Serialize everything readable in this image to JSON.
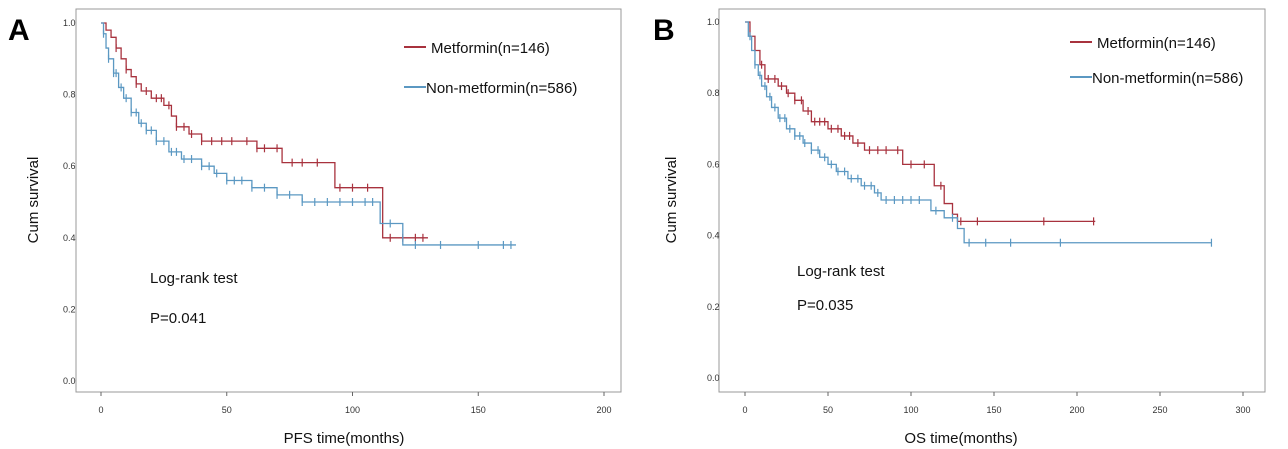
{
  "chart_data": [
    {
      "type": "line",
      "panel_label": "A",
      "xlabel": "PFS time(months)",
      "ylabel": "Cum survival",
      "xlim": [
        0,
        200
      ],
      "ylim": [
        0,
        1
      ],
      "xticks": [
        "0",
        "50",
        "100",
        "150",
        "200"
      ],
      "yticks": [
        "0.0",
        "0.2",
        "0.4",
        "0.6",
        "0.8",
        "1.0"
      ],
      "legend_position": "top-right",
      "annotations": [
        "Log-rank test",
        "P=0.041"
      ],
      "series": [
        {
          "name": "Metformin(n=146)",
          "color": "#a8323e",
          "steps": [
            [
              0,
              1.0
            ],
            [
              2,
              0.98
            ],
            [
              4,
              0.96
            ],
            [
              6,
              0.93
            ],
            [
              8,
              0.9
            ],
            [
              10,
              0.87
            ],
            [
              12,
              0.85
            ],
            [
              14,
              0.83
            ],
            [
              16,
              0.81
            ],
            [
              20,
              0.79
            ],
            [
              25,
              0.77
            ],
            [
              28,
              0.74
            ],
            [
              30,
              0.71
            ],
            [
              35,
              0.69
            ],
            [
              40,
              0.67
            ],
            [
              60,
              0.67
            ],
            [
              62,
              0.65
            ],
            [
              70,
              0.65
            ],
            [
              72,
              0.61
            ],
            [
              92,
              0.61
            ],
            [
              93,
              0.54
            ],
            [
              110,
              0.54
            ],
            [
              112,
              0.4
            ],
            [
              130,
              0.4
            ]
          ],
          "censor_x": [
            6,
            10,
            14,
            18,
            22,
            24,
            27,
            30,
            33,
            36,
            40,
            44,
            48,
            52,
            58,
            62,
            65,
            70,
            76,
            80,
            86,
            95,
            100,
            106,
            115,
            120,
            125,
            128
          ]
        },
        {
          "name": "Non-metformin(n=586)",
          "color": "#5b98c2",
          "steps": [
            [
              0,
              1.0
            ],
            [
              1,
              0.97
            ],
            [
              2,
              0.93
            ],
            [
              3,
              0.9
            ],
            [
              5,
              0.86
            ],
            [
              7,
              0.82
            ],
            [
              9,
              0.79
            ],
            [
              12,
              0.75
            ],
            [
              15,
              0.72
            ],
            [
              18,
              0.7
            ],
            [
              22,
              0.67
            ],
            [
              27,
              0.64
            ],
            [
              32,
              0.62
            ],
            [
              40,
              0.6
            ],
            [
              45,
              0.58
            ],
            [
              50,
              0.56
            ],
            [
              60,
              0.54
            ],
            [
              70,
              0.52
            ],
            [
              80,
              0.5
            ],
            [
              110,
              0.5
            ],
            [
              111,
              0.44
            ],
            [
              120,
              0.38
            ],
            [
              165,
              0.38
            ]
          ],
          "censor_x": [
            1,
            3,
            5,
            6,
            8,
            10,
            12,
            14,
            16,
            18,
            20,
            22,
            25,
            28,
            30,
            33,
            36,
            40,
            43,
            46,
            50,
            53,
            56,
            60,
            65,
            70,
            75,
            80,
            85,
            90,
            95,
            100,
            105,
            108,
            115,
            125,
            135,
            150,
            160,
            163
          ]
        }
      ]
    },
    {
      "type": "line",
      "panel_label": "B",
      "xlabel": "OS time(months)",
      "ylabel": "Cum survival",
      "xlim": [
        0,
        300
      ],
      "ylim": [
        0,
        1
      ],
      "xticks": [
        "0",
        "50",
        "100",
        "150",
        "200",
        "250",
        "300"
      ],
      "yticks": [
        "0.0",
        "0.2",
        "0.4",
        "0.6",
        "0.8",
        "1.0"
      ],
      "legend_position": "top-right",
      "annotations": [
        "Log-rank test",
        "P=0.035"
      ],
      "series": [
        {
          "name": "Metformin(n=146)",
          "color": "#a8323e",
          "steps": [
            [
              0,
              1.0
            ],
            [
              3,
              0.96
            ],
            [
              6,
              0.92
            ],
            [
              9,
              0.88
            ],
            [
              12,
              0.84
            ],
            [
              20,
              0.82
            ],
            [
              25,
              0.8
            ],
            [
              30,
              0.78
            ],
            [
              35,
              0.75
            ],
            [
              40,
              0.72
            ],
            [
              50,
              0.7
            ],
            [
              58,
              0.68
            ],
            [
              65,
              0.66
            ],
            [
              72,
              0.64
            ],
            [
              90,
              0.64
            ],
            [
              95,
              0.6
            ],
            [
              112,
              0.6
            ],
            [
              114,
              0.54
            ],
            [
              120,
              0.49
            ],
            [
              125,
              0.46
            ],
            [
              128,
              0.44
            ],
            [
              211,
              0.44
            ]
          ],
          "censor_x": [
            10,
            14,
            18,
            22,
            26,
            30,
            34,
            38,
            42,
            45,
            48,
            52,
            56,
            60,
            63,
            68,
            75,
            80,
            85,
            92,
            100,
            108,
            118,
            130,
            140,
            180,
            210
          ]
        },
        {
          "name": "Non-metformin(n=586)",
          "color": "#5b98c2",
          "steps": [
            [
              0,
              1.0
            ],
            [
              2,
              0.96
            ],
            [
              4,
              0.92
            ],
            [
              6,
              0.88
            ],
            [
              8,
              0.85
            ],
            [
              10,
              0.82
            ],
            [
              13,
              0.79
            ],
            [
              16,
              0.76
            ],
            [
              20,
              0.73
            ],
            [
              25,
              0.7
            ],
            [
              30,
              0.68
            ],
            [
              35,
              0.66
            ],
            [
              40,
              0.64
            ],
            [
              45,
              0.62
            ],
            [
              50,
              0.6
            ],
            [
              55,
              0.58
            ],
            [
              62,
              0.56
            ],
            [
              70,
              0.54
            ],
            [
              78,
              0.52
            ],
            [
              82,
              0.5
            ],
            [
              110,
              0.5
            ],
            [
              112,
              0.47
            ],
            [
              120,
              0.45
            ],
            [
              128,
              0.42
            ],
            [
              132,
              0.38
            ],
            [
              281,
              0.38
            ]
          ],
          "censor_x": [
            3,
            6,
            9,
            12,
            15,
            18,
            21,
            24,
            27,
            30,
            33,
            36,
            40,
            44,
            48,
            52,
            56,
            60,
            64,
            68,
            72,
            76,
            80,
            85,
            90,
            95,
            100,
            105,
            115,
            125,
            135,
            145,
            160,
            190,
            281
          ]
        }
      ]
    }
  ]
}
